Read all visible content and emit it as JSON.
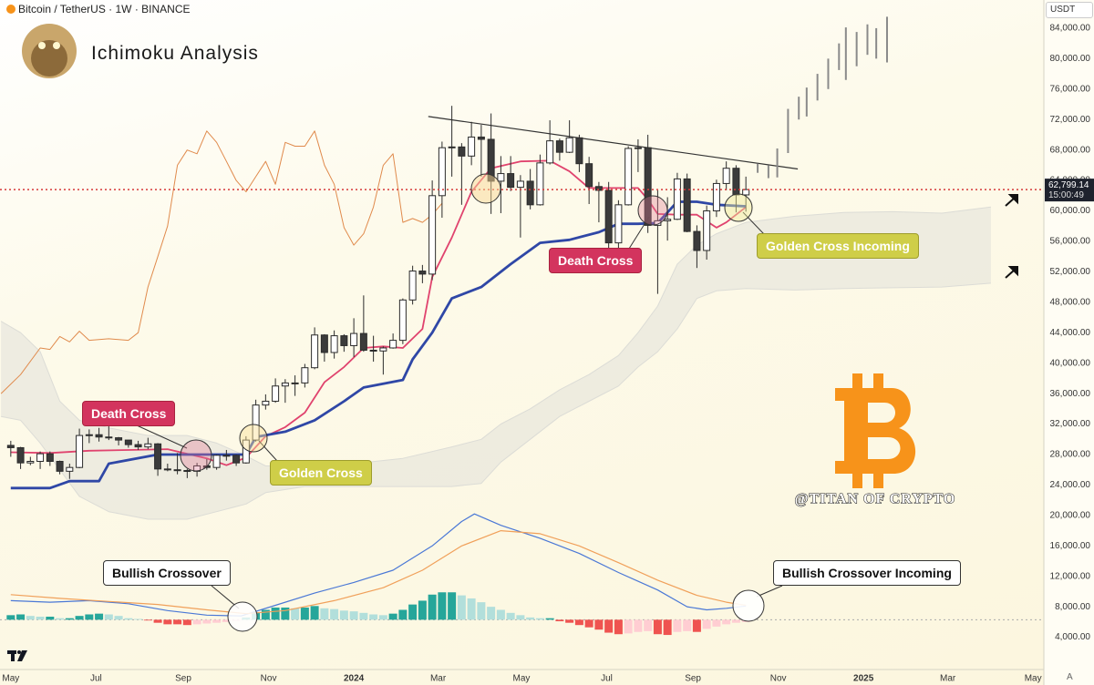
{
  "chart_data": {
    "type": "candlestick",
    "header": "Bitcoin / TetherUS · 1W · BINANCE",
    "title": "Ichimoku Analysis",
    "currency": "USDT",
    "corner_label": "A",
    "watermark": "@TITAN OF CRYPTO",
    "annotations": [
      "Death Cross",
      "Golden Cross",
      "Death Cross",
      "Golden Cross Incoming",
      "Bullish Crossover",
      "Bullish Crossover Incoming"
    ],
    "xlim": [
      -1.1,
      105.4
    ],
    "xticks": [
      {
        "value": 0,
        "label": "May"
      },
      {
        "value": 8.7,
        "label": "Jul"
      },
      {
        "value": 17.6,
        "label": "Sep"
      },
      {
        "value": 26.3,
        "label": "Nov"
      },
      {
        "value": 35,
        "label": "2024"
      },
      {
        "value": 43.6,
        "label": "Mar"
      },
      {
        "value": 52.1,
        "label": "May"
      },
      {
        "value": 60.8,
        "label": "Jul"
      },
      {
        "value": 69.6,
        "label": "Sep"
      },
      {
        "value": 78.3,
        "label": "Nov"
      },
      {
        "value": 87,
        "label": "2025"
      },
      {
        "value": 95.6,
        "label": "Mar"
      },
      {
        "value": 104.3,
        "label": "May"
      }
    ],
    "ylim": [
      0,
      87700
    ],
    "yticks": [
      {
        "value": 4000,
        "label": "4,000.00"
      },
      {
        "value": 8000,
        "label": "8,000.00"
      },
      {
        "value": 12000,
        "label": "12,000.00"
      },
      {
        "value": 16000,
        "label": "16,000.00"
      },
      {
        "value": 20000,
        "label": "20,000.00"
      },
      {
        "value": 24000,
        "label": "24,000.00"
      },
      {
        "value": 28000,
        "label": "28,000.00"
      },
      {
        "value": 32000,
        "label": "32,000.00"
      },
      {
        "value": 36000,
        "label": "36,000.00"
      },
      {
        "value": 40000,
        "label": "40,000.00"
      },
      {
        "value": 44000,
        "label": "44,000.00"
      },
      {
        "value": 48000,
        "label": "48,000.00"
      },
      {
        "value": 52000,
        "label": "52,000.00"
      },
      {
        "value": 56000,
        "label": "56,000.00"
      },
      {
        "value": 60000,
        "label": "60,000.00"
      },
      {
        "value": 64000,
        "label": "64,000.00"
      },
      {
        "value": 68000,
        "label": "68,000.00"
      },
      {
        "value": 72000,
        "label": "72,000.00"
      },
      {
        "value": 76000,
        "label": "76,000.00"
      },
      {
        "value": 80000,
        "label": "80,000.00"
      },
      {
        "value": 84000,
        "label": "84,000.00"
      }
    ],
    "colors": {
      "up": "#ffffff",
      "down": "#3b3b3b",
      "outline": "#2b2b2b"
    },
    "x": [
      0,
      1,
      2,
      3,
      4,
      5,
      6,
      7,
      8,
      9,
      10,
      11,
      12,
      13,
      14,
      15,
      16,
      17,
      18,
      19,
      20,
      21,
      22,
      23,
      24,
      25,
      26,
      27,
      28,
      29,
      30,
      31,
      32,
      33,
      34,
      35,
      36,
      37,
      38,
      39,
      40,
      41,
      42,
      43,
      44,
      45,
      46,
      47,
      48,
      49,
      50,
      51,
      52,
      53,
      54,
      55,
      56,
      57,
      58,
      59,
      60,
      61,
      62,
      63,
      64,
      65,
      66,
      67,
      68,
      69,
      70,
      71,
      72,
      73,
      74,
      75
    ],
    "ohlc": [
      [
        29200,
        29800,
        27700,
        28900
      ],
      [
        28900,
        29000,
        26100,
        26900
      ],
      [
        26900,
        27700,
        26600,
        27100
      ],
      [
        27100,
        28400,
        26100,
        28100
      ],
      [
        28100,
        28400,
        26500,
        27100
      ],
      [
        27100,
        27200,
        25400,
        25800
      ],
      [
        25800,
        26800,
        24800,
        26300
      ],
      [
        26300,
        31400,
        26200,
        30500
      ],
      [
        30500,
        31300,
        29500,
        30600
      ],
      [
        30600,
        31500,
        29700,
        30300
      ],
      [
        30300,
        31800,
        29900,
        30200
      ],
      [
        30200,
        30300,
        29200,
        29900
      ],
      [
        29900,
        29900,
        28900,
        29300
      ],
      [
        29300,
        29800,
        28600,
        29000
      ],
      [
        29000,
        30200,
        28700,
        29400
      ],
      [
        29400,
        29500,
        25200,
        26100
      ],
      [
        26100,
        26800,
        25800,
        26000
      ],
      [
        26000,
        28200,
        25400,
        25900
      ],
      [
        25900,
        26100,
        24900,
        25800
      ],
      [
        25800,
        26900,
        25100,
        26500
      ],
      [
        26500,
        27400,
        26000,
        26300
      ],
      [
        26300,
        28000,
        26000,
        27900
      ],
      [
        27900,
        28600,
        27200,
        27900
      ],
      [
        27900,
        28000,
        26500,
        26900
      ],
      [
        26900,
        30400,
        26800,
        29900
      ],
      [
        29900,
        35200,
        29700,
        34500
      ],
      [
        34500,
        35900,
        33900,
        35000
      ],
      [
        35000,
        38000,
        34800,
        37000
      ],
      [
        37000,
        37900,
        34800,
        37400
      ],
      [
        37400,
        38400,
        35700,
        37400
      ],
      [
        37400,
        39900,
        36800,
        39400
      ],
      [
        39400,
        44700,
        39200,
        43700
      ],
      [
        43700,
        43800,
        40200,
        41400
      ],
      [
        41400,
        44300,
        40600,
        43600
      ],
      [
        43600,
        43800,
        41500,
        42300
      ],
      [
        42300,
        45900,
        40800,
        43900
      ],
      [
        43900,
        48900,
        41500,
        41700
      ],
      [
        41700,
        43600,
        40200,
        41600
      ],
      [
        41600,
        42200,
        38500,
        42000
      ],
      [
        42000,
        43900,
        41900,
        43000
      ],
      [
        43000,
        48500,
        42500,
        48300
      ],
      [
        48300,
        52800,
        47700,
        52100
      ],
      [
        52100,
        52900,
        50500,
        51700
      ],
      [
        51700,
        64000,
        50900,
        62000
      ],
      [
        62000,
        69100,
        59100,
        68300
      ],
      [
        68300,
        73800,
        64500,
        68400
      ],
      [
        68400,
        68900,
        60800,
        67200
      ],
      [
        67200,
        71700,
        66000,
        69700
      ],
      [
        69700,
        71300,
        64500,
        69400
      ],
      [
        69400,
        72800,
        59600,
        63900
      ],
      [
        63900,
        67200,
        59700,
        64900
      ],
      [
        64900,
        67200,
        62600,
        63100
      ],
      [
        63100,
        64700,
        56500,
        63900
      ],
      [
        63900,
        65500,
        60200,
        60800
      ],
      [
        60800,
        67400,
        60700,
        66300
      ],
      [
        66300,
        71900,
        66100,
        69200
      ],
      [
        69200,
        69500,
        66600,
        67700
      ],
      [
        67700,
        71900,
        67600,
        69600
      ],
      [
        69600,
        70000,
        65100,
        66200
      ],
      [
        66200,
        67100,
        60900,
        63200
      ],
      [
        63200,
        63800,
        58500,
        62700
      ],
      [
        62700,
        63800,
        53500,
        55800
      ],
      [
        55800,
        61400,
        54300,
        60800
      ],
      [
        60800,
        68500,
        60700,
        68200
      ],
      [
        68200,
        69400,
        65100,
        68300
      ],
      [
        68300,
        70000,
        57100,
        58100
      ],
      [
        58100,
        62700,
        49100,
        58700
      ],
      [
        58700,
        61800,
        56100,
        58900
      ],
      [
        58900,
        65000,
        58800,
        64200
      ],
      [
        64200,
        64900,
        57200,
        57300
      ],
      [
        57300,
        58100,
        52500,
        54800
      ],
      [
        54800,
        60700,
        53600,
        60000
      ],
      [
        60000,
        64100,
        59200,
        63600
      ],
      [
        63600,
        66500,
        62700,
        65600
      ],
      [
        65600,
        66000,
        59800,
        62100
      ],
      [
        62100,
        64500,
        59900,
        62800
      ]
    ],
    "lines": [
      {
        "color": "#e0436e",
        "x": [
          0,
          4,
          8,
          12,
          16,
          20,
          22,
          24,
          26,
          28,
          30,
          32,
          34,
          36,
          38,
          40,
          42,
          43,
          45,
          47,
          49,
          52,
          55,
          57,
          59,
          60,
          64,
          65,
          66,
          68,
          70,
          72,
          73,
          75
        ],
        "values": [
          28300,
          28200,
          28500,
          28600,
          28700,
          27500,
          26600,
          27600,
          30400,
          31600,
          33500,
          37500,
          39500,
          42000,
          42200,
          42000,
          44500,
          51300,
          56500,
          62500,
          65600,
          66500,
          66600,
          65200,
          63000,
          63000,
          63000,
          61500,
          59600,
          59500,
          59500,
          57800,
          58500,
          60500
        ]
      },
      {
        "color": "#2f47a6",
        "x": [
          0,
          4,
          6,
          9,
          10,
          15,
          20,
          24,
          25,
          28,
          31,
          34,
          36,
          40,
          41,
          43,
          45,
          48,
          51,
          54,
          57,
          60,
          62,
          64,
          66,
          68,
          70,
          72,
          75
        ],
        "values": [
          23600,
          23600,
          24500,
          24500,
          26800,
          28000,
          28000,
          28000,
          30300,
          31000,
          32500,
          35000,
          36800,
          37800,
          40500,
          44000,
          48500,
          50000,
          53000,
          55800,
          56200,
          57200,
          58300,
          58300,
          58400,
          61200,
          61200,
          60800,
          60600
        ]
      },
      {
        "color": "#e08a4c",
        "x": [
          -1,
          1,
          3,
          4,
          5,
          6,
          7,
          8,
          10,
          12,
          13,
          14,
          15,
          16,
          17,
          18,
          19,
          20,
          21,
          22,
          23,
          24,
          25,
          26,
          27,
          28,
          29,
          30,
          31,
          32,
          33,
          34,
          35,
          36,
          37,
          38,
          39,
          40,
          41,
          42,
          43,
          44
        ],
        "values": [
          36000,
          38500,
          42000,
          41800,
          43500,
          42800,
          44200,
          43000,
          43200,
          43000,
          44000,
          50000,
          54000,
          58000,
          66000,
          68000,
          67500,
          70500,
          69000,
          66500,
          64000,
          62500,
          64500,
          66500,
          63500,
          69000,
          68500,
          68500,
          70500,
          66000,
          63500,
          57800,
          55500,
          57000,
          60500,
          66000,
          67500,
          58500,
          59000,
          58500,
          59500,
          61000
        ]
      }
    ],
    "cloud": {
      "color": "#dcdcd6",
      "x": [
        -1,
        1,
        3,
        5,
        7,
        10,
        14,
        18,
        21,
        24,
        26,
        30,
        35,
        40,
        45,
        48,
        50,
        53,
        56,
        59,
        62,
        64,
        66,
        68,
        70,
        72,
        75,
        80,
        85,
        90,
        95,
        100
      ],
      "upper": [
        45500,
        44000,
        41500,
        35000,
        32500,
        31500,
        30500,
        30500,
        29500,
        27800,
        26500,
        26500,
        26800,
        27500,
        29000,
        30000,
        32000,
        34000,
        36500,
        38500,
        41000,
        44000,
        47500,
        53000,
        55500,
        57000,
        58500,
        59300,
        59800,
        59900,
        59700,
        60500
      ],
      "lower": [
        33000,
        32500,
        29500,
        26000,
        22500,
        20500,
        19500,
        19500,
        20500,
        21500,
        23000,
        23800,
        23800,
        23800,
        23800,
        24200,
        27000,
        30000,
        33000,
        35000,
        37000,
        39500,
        41500,
        44500,
        48500,
        49500,
        49800,
        49600,
        49800,
        49900,
        50000,
        50500
      ]
    },
    "trendline": {
      "color": "#333333",
      "x": [
        42.6,
        80.3
      ],
      "values": [
        72400,
        65500
      ]
    },
    "projection": {
      "color": "#8a8a8a",
      "x": [
        76.2,
        77.3,
        78.2,
        79.3,
        80.4,
        81.2,
        82.3,
        83.4,
        84.5,
        85.2,
        86.3,
        87.4,
        88.3,
        89.4
      ],
      "low": [
        65000,
        64300,
        64400,
        67600,
        72000,
        72400,
        74500,
        76000,
        78500,
        77200,
        79000,
        80500,
        80000,
        79500
      ],
      "high": [
        66200,
        66000,
        68200,
        73400,
        75000,
        76200,
        78000,
        80000,
        82000,
        84100,
        83500,
        84500,
        84000,
        85500
      ]
    },
    "last_price": {
      "value": 62799.14,
      "label": "62,799.14",
      "countdown": "15:00:49",
      "color": "#d63a3a"
    },
    "macd": {
      "baseline": 6300,
      "line": {
        "color": "#4a78d6",
        "x": [
          0,
          4,
          8,
          12,
          16,
          20,
          23.5,
          27,
          31,
          35,
          39,
          43,
          46,
          47.3,
          50,
          54,
          58,
          62,
          66,
          69,
          71,
          73,
          75
        ],
        "values": [
          8800,
          8600,
          8800,
          8400,
          7500,
          6900,
          6800,
          8200,
          9800,
          11200,
          12800,
          16000,
          19200,
          20200,
          18700,
          17000,
          15000,
          12500,
          10200,
          8000,
          7600,
          7800,
          8100
        ]
      },
      "signal": {
        "color": "#f0a05a",
        "x": [
          0,
          5,
          10,
          15,
          20,
          24,
          28,
          33,
          38,
          42,
          46,
          50,
          54,
          58,
          62,
          66,
          70,
          73,
          75
        ],
        "values": [
          9600,
          9100,
          8700,
          8300,
          7600,
          7100,
          7500,
          8800,
          10500,
          12800,
          16000,
          18000,
          17600,
          16000,
          13800,
          11500,
          9500,
          8600,
          8200
        ]
      },
      "histogram": [
        6900,
        7000,
        6800,
        6700,
        6700,
        6500,
        6500,
        6800,
        7000,
        7100,
        7000,
        6800,
        6500,
        6400,
        6200,
        5900,
        5700,
        5700,
        5600,
        5700,
        5800,
        5900,
        6000,
        6100,
        6600,
        7300,
        7600,
        7900,
        7900,
        7800,
        7900,
        8100,
        7800,
        7700,
        7500,
        7400,
        7200,
        7000,
        6900,
        7100,
        7600,
        8300,
        8800,
        9600,
        9900,
        9900,
        9500,
        9100,
        8600,
        8000,
        7600,
        7200,
        6900,
        6600,
        6500,
        6500,
        6100,
        5900,
        5600,
        5300,
        5000,
        4600,
        4400,
        4500,
        4700,
        4800,
        4400,
        4300,
        4700,
        4800,
        4700,
        5100,
        5400,
        5700,
        5900,
        6000
      ],
      "histogram_colors": {
        "pos_up": "#26a69a",
        "pos_down": "#b2dfdb",
        "neg_down": "#ef5350",
        "neg_up": "#ffcdd2"
      }
    }
  }
}
